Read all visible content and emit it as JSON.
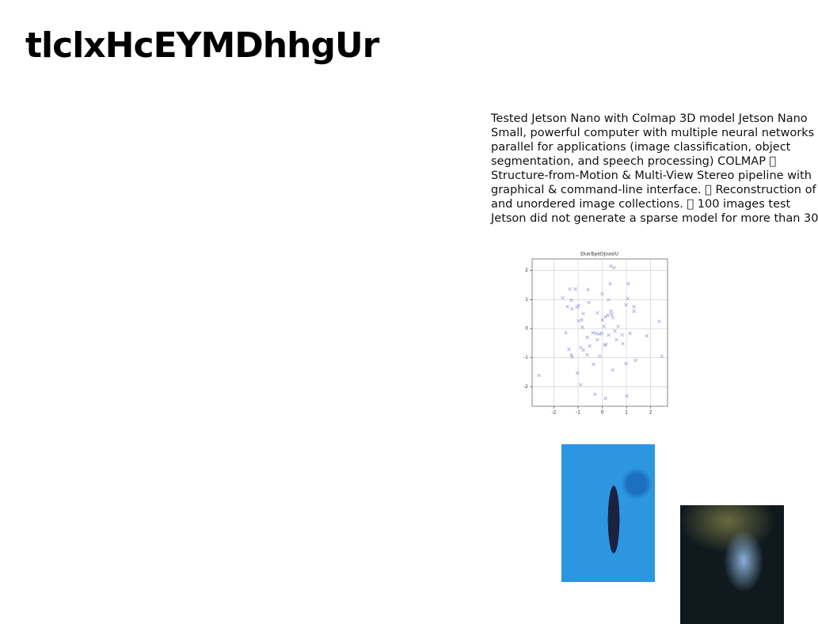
{
  "header": {
    "title": "tlclxHcEYMDhhgUr"
  },
  "body": {
    "lines": [
      "Tested Jetson Nano with Colmap 3D model Jetson Nano",
      "Small, powerful computer with multiple neural networks",
      "parallel for applications (image classification, object",
      "segmentation, and speech processing) COLMAP ",
      "Structure-from-Motion & Multi-View Stereo pipeline with",
      "graphical & command-line interface.  Reconstruction of",
      "and unordered image collections.  100 images test",
      "Jetson did not generate a sparse model for more than 30"
    ]
  },
  "chart_data": {
    "type": "scatter",
    "title": "EkarBpeDjoasIU",
    "color": "#7f7fd0",
    "grid": true,
    "xlim": [
      -2.9,
      2.7
    ],
    "ylim": [
      -2.67,
      2.4
    ],
    "xticks": [
      -2,
      -1,
      0,
      1,
      2
    ],
    "yticks": [
      -2,
      -1,
      0,
      1,
      2
    ],
    "x": [
      0.36,
      0.49,
      -1.34,
      -1.11,
      -0.59,
      0.33,
      1.08,
      -1.64,
      -1.28,
      -0.56,
      0,
      0.26,
      1.05,
      -1.44,
      -1.25,
      -1.05,
      -0.98,
      0.98,
      1.31,
      1.31,
      -0.79,
      -0.2,
      0.36,
      -0.98,
      -0.85,
      0,
      0.43,
      0.13,
      0.23,
      0.39,
      2.36,
      -1.51,
      -0.82,
      -0.39,
      -0.26,
      -0.13,
      0.07,
      0.52,
      0.66,
      0.82,
      1.15,
      1.84,
      -0.03,
      0.26,
      -0.62,
      -0.2,
      0.59,
      0.85,
      -1.38,
      -0.89,
      -0.79,
      -0.52,
      0.1,
      0.16,
      -1.28,
      -1.25,
      -0.62,
      -0.1,
      2.46,
      1.38,
      0.98,
      -0.36,
      0.43,
      -2.62,
      -1.02,
      -0.89,
      -0.3,
      0.13,
      1.02
    ],
    "values": [
      2.15,
      2.1,
      1.36,
      1.36,
      1.34,
      1.55,
      1.55,
      1.06,
      0.98,
      0.9,
      1.2,
      1.0,
      1.04,
      0.76,
      0.68,
      0.74,
      0.79,
      0.82,
      0.76,
      0.6,
      0.52,
      0.54,
      0.6,
      0.27,
      0.3,
      0.3,
      0.38,
      0.41,
      0.46,
      0.49,
      0.25,
      -0.14,
      0.05,
      -0.14,
      -0.16,
      -0.19,
      0.08,
      -0.08,
      0.08,
      -0.22,
      -0.16,
      -0.25,
      -0.16,
      -0.22,
      -0.3,
      -0.38,
      -0.38,
      -0.52,
      -0.71,
      -0.65,
      -0.74,
      -0.6,
      -0.57,
      -0.54,
      -0.9,
      -0.98,
      -0.9,
      -0.95,
      -0.95,
      -1.09,
      -1.2,
      -1.23,
      -1.42,
      -1.61,
      -1.53,
      -1.93,
      -2.26,
      -2.4,
      -2.32
    ]
  }
}
